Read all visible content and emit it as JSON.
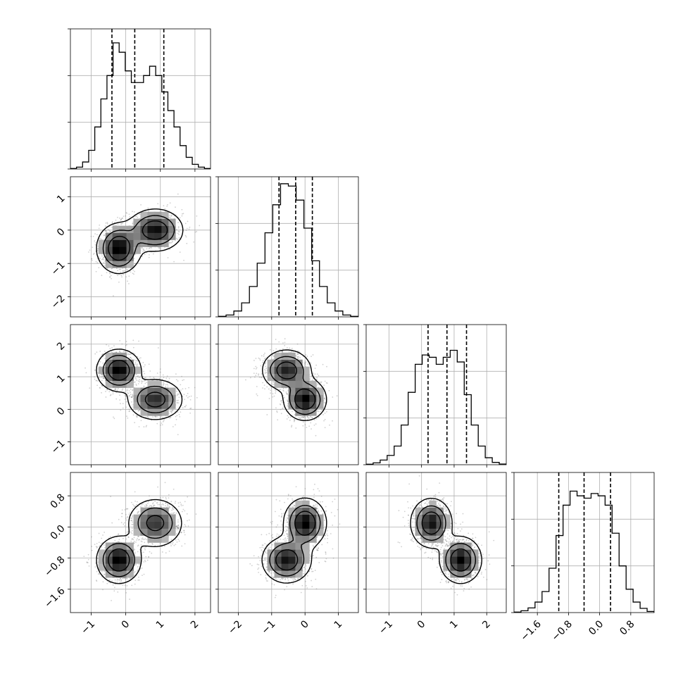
{
  "chart_data": {
    "type": "corner",
    "title": "",
    "grid": true,
    "axes": [
      {
        "range": [
          -1.6,
          2.45
        ],
        "ticks": [
          -1,
          0,
          1,
          2
        ],
        "tick_labels": [
          "−1",
          "0",
          "1",
          "2"
        ],
        "quantiles": [
          -0.4,
          0.26,
          1.1
        ]
      },
      {
        "range": [
          -2.6,
          1.6
        ],
        "ticks": [
          -2,
          -1,
          0,
          1
        ],
        "tick_labels": [
          "−2",
          "−1",
          "0",
          "1"
        ],
        "quantiles": [
          -0.78,
          -0.28,
          0.22
        ]
      },
      {
        "range": [
          -1.7,
          2.6
        ],
        "ticks": [
          -1,
          0,
          1,
          2
        ],
        "tick_labels": [
          "−1",
          "0",
          "1",
          "2"
        ],
        "quantiles": [
          0.2,
          0.78,
          1.38
        ]
      },
      {
        "range": [
          -2.2,
          1.4
        ],
        "ticks": [
          -1.6,
          -0.8,
          0.0,
          0.8
        ],
        "tick_labels": [
          "−1.6",
          "−0.8",
          "0.0",
          "0.8"
        ],
        "quantiles": [
          -1.05,
          -0.4,
          0.28
        ]
      }
    ],
    "histograms": [
      {
        "dimension": 0,
        "ymax": 0.6,
        "counts": [
          0.002,
          0.008,
          0.03,
          0.08,
          0.18,
          0.3,
          0.4,
          0.54,
          0.5,
          0.42,
          0.37,
          0.37,
          0.4,
          0.44,
          0.4,
          0.33,
          0.25,
          0.18,
          0.1,
          0.05,
          0.02,
          0.008,
          0.002
        ]
      },
      {
        "dimension": 1,
        "ymax": 0.6,
        "counts": [
          0.002,
          0.008,
          0.025,
          0.06,
          0.13,
          0.23,
          0.36,
          0.48,
          0.57,
          0.56,
          0.5,
          0.38,
          0.24,
          0.13,
          0.06,
          0.025,
          0.008,
          0.002
        ]
      },
      {
        "dimension": 2,
        "ymax": 0.6,
        "counts": [
          0.002,
          0.008,
          0.02,
          0.04,
          0.08,
          0.17,
          0.31,
          0.43,
          0.47,
          0.46,
          0.43,
          0.46,
          0.49,
          0.44,
          0.3,
          0.17,
          0.08,
          0.03,
          0.01,
          0.003
        ]
      },
      {
        "dimension": 3,
        "ymax": 0.6,
        "counts": [
          0.002,
          0.008,
          0.02,
          0.045,
          0.09,
          0.19,
          0.33,
          0.46,
          0.52,
          0.5,
          0.49,
          0.51,
          0.5,
          0.46,
          0.34,
          0.2,
          0.1,
          0.045,
          0.018,
          0.005
        ]
      }
    ],
    "modes": [
      {
        "weight": 0.5,
        "mean": [
          -0.2,
          -0.55,
          1.2,
          -0.85
        ],
        "sd": [
          0.3,
          0.35,
          0.3,
          0.28
        ]
      },
      {
        "weight": 0.5,
        "mean": [
          0.85,
          0.0,
          0.3,
          0.1
        ],
        "sd": [
          0.38,
          0.3,
          0.3,
          0.3
        ]
      }
    ],
    "xlabels": [
      "",
      "",
      "",
      ""
    ],
    "ylabels": [
      "",
      "",
      ""
    ]
  }
}
